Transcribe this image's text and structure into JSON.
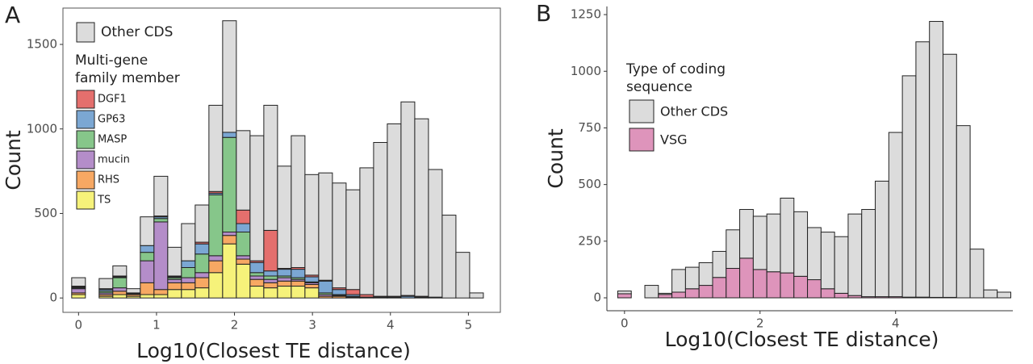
{
  "chart_data": [
    {
      "type": "histogram",
      "panel_label": "A",
      "xlabel": "Log10(Closest TE distance)",
      "ylabel": "Count",
      "legend_title": [
        "Multi-gene",
        "family member"
      ],
      "bins": [
        -0.088,
        0.088,
        0.264,
        0.44,
        0.616,
        0.792,
        0.968,
        1.144,
        1.32,
        1.496,
        1.672,
        1.848,
        2.024,
        2.2,
        2.376,
        2.552,
        2.728,
        2.904,
        3.08,
        3.256,
        3.432,
        3.608,
        3.784,
        3.96,
        4.136,
        4.312,
        4.488,
        4.664,
        4.84,
        5.016,
        5.192
      ],
      "xlim": [
        -0.2,
        5.41
      ],
      "xticks": [
        0,
        1,
        2,
        3,
        4,
        5
      ],
      "ylim": [
        -85,
        1715
      ],
      "yticks": [
        0,
        500,
        1000,
        1500
      ],
      "series": [
        {
          "name": "TS",
          "color": "#f6f27a",
          "values": [
            20,
            0,
            10,
            20,
            10,
            20,
            20,
            50,
            50,
            60,
            150,
            320,
            200,
            70,
            60,
            70,
            70,
            60,
            0,
            0,
            0,
            0,
            0,
            0,
            0,
            0,
            0,
            0,
            0,
            0
          ]
        },
        {
          "name": "RHS",
          "color": "#f7a863",
          "values": [
            10,
            0,
            10,
            20,
            10,
            70,
            30,
            40,
            40,
            60,
            70,
            50,
            30,
            40,
            30,
            30,
            30,
            20,
            10,
            10,
            5,
            0,
            0,
            0,
            0,
            0,
            0,
            0,
            0,
            0
          ]
        },
        {
          "name": "mucin",
          "color": "#b48dc9",
          "values": [
            25,
            0,
            10,
            20,
            5,
            130,
            400,
            20,
            30,
            30,
            30,
            20,
            20,
            20,
            20,
            20,
            10,
            10,
            10,
            5,
            5,
            0,
            0,
            0,
            0,
            0,
            0,
            0,
            0,
            0
          ]
        },
        {
          "name": "MASP",
          "color": "#86c68a",
          "values": [
            5,
            0,
            10,
            60,
            5,
            50,
            20,
            10,
            60,
            110,
            360,
            560,
            140,
            20,
            20,
            10,
            10,
            5,
            10,
            5,
            0,
            0,
            0,
            0,
            0,
            0,
            0,
            0,
            0,
            0
          ]
        },
        {
          "name": "GP63",
          "color": "#7ba7d3",
          "values": [
            5,
            0,
            10,
            5,
            0,
            40,
            10,
            5,
            40,
            60,
            10,
            30,
            50,
            60,
            30,
            40,
            50,
            30,
            70,
            30,
            10,
            5,
            5,
            5,
            10,
            5,
            5,
            0,
            0,
            0
          ]
        },
        {
          "name": "DGF1",
          "color": "#e46f6d",
          "values": [
            5,
            0,
            5,
            5,
            0,
            0,
            5,
            5,
            0,
            10,
            10,
            0,
            80,
            10,
            240,
            5,
            10,
            10,
            5,
            10,
            30,
            15,
            5,
            5,
            5,
            5,
            0,
            0,
            0,
            0
          ]
        },
        {
          "name": "Other CDS",
          "color": "#dcdcdc",
          "values": [
            50,
            0,
            60,
            60,
            25,
            170,
            235,
            170,
            220,
            220,
            510,
            660,
            470,
            740,
            740,
            605,
            780,
            595,
            635,
            620,
            590,
            750,
            910,
            1020,
            1145,
            1050,
            755,
            490,
            270,
            30
          ]
        }
      ]
    },
    {
      "type": "histogram",
      "panel_label": "B",
      "xlabel": "Log10(Closest TE distance)",
      "ylabel": "Count",
      "legend_title": [
        "Type of coding",
        " sequence"
      ],
      "bins": [
        -0.1,
        0.1,
        0.3,
        0.5,
        0.7,
        0.9,
        1.1,
        1.3,
        1.5,
        1.7,
        1.9,
        2.1,
        2.3,
        2.5,
        2.7,
        2.9,
        3.1,
        3.3,
        3.5,
        3.7,
        3.9,
        4.1,
        4.3,
        4.5,
        4.7,
        4.9,
        5.1,
        5.3,
        5.5,
        5.7
      ],
      "xlim": [
        -0.26,
        5.73
      ],
      "xticks": [
        0,
        2,
        4
      ],
      "ylim": [
        -57,
        1286
      ],
      "yticks": [
        0,
        250,
        500,
        750,
        1000,
        1250
      ],
      "series": [
        {
          "name": "VSG",
          "color": "#de94bb",
          "values": [
            18,
            0,
            0,
            15,
            25,
            40,
            55,
            90,
            130,
            175,
            125,
            115,
            110,
            95,
            80,
            40,
            20,
            10,
            5,
            5,
            5,
            3,
            3,
            2,
            2,
            0,
            0,
            0,
            0
          ]
        },
        {
          "name": "Other CDS",
          "color": "#dcdcdc",
          "values": [
            12,
            0,
            55,
            5,
            100,
            95,
            100,
            115,
            170,
            215,
            235,
            255,
            330,
            285,
            230,
            250,
            250,
            360,
            385,
            510,
            725,
            977,
            1127,
            1218,
            1073,
            760,
            215,
            35,
            25
          ]
        }
      ]
    }
  ]
}
